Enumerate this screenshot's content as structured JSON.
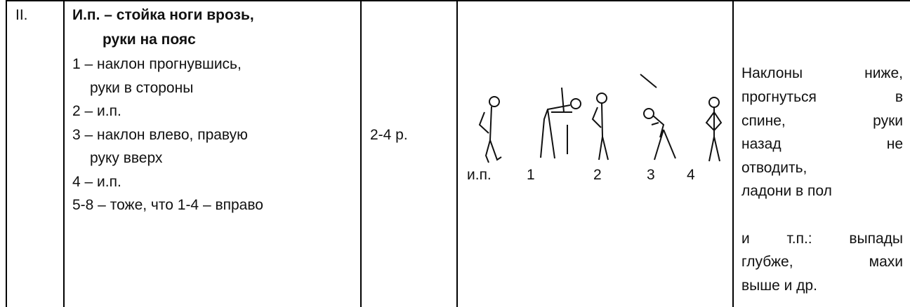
{
  "row": {
    "number": "II.",
    "exercise": {
      "title": [
        "И.п. – стойка ноги врозь,",
        "руки на пояс"
      ],
      "steps": [
        "1 – наклон прогнувшись,",
        "руки в стороны",
        "2 – и.п.",
        "3 – наклон влево, правую",
        "руку вверх",
        "4 – и.п.",
        "5-8 – тоже, что 1-4 – вправо"
      ]
    },
    "dosage": "2-4 р.",
    "figure_labels": [
      "и.п.",
      "1",
      "2",
      "3",
      "4"
    ],
    "notes": [
      "Наклоны ниже,",
      "прогнуться в",
      "спине, руки",
      "назад не",
      "отводить,",
      "ладони в пол",
      "и т.п.: выпады",
      "глубже, махи",
      "выше и др."
    ]
  }
}
